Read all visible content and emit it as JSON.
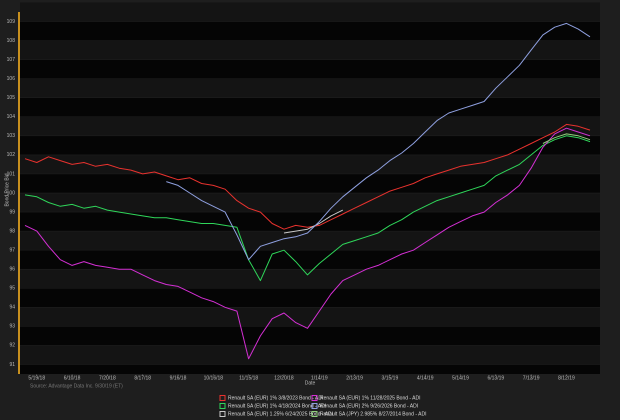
{
  "chart_data": {
    "type": "line",
    "y_label": "Bond Price Bid",
    "x_label": "Date",
    "source": "Source: Advantage Data Inc. 9/30/19 (ET)",
    "categories": [
      null,
      "5/19/18",
      null,
      null,
      "6/10/18",
      null,
      null,
      "7/20/18",
      null,
      null,
      "8/17/18",
      null,
      null,
      "9/16/18",
      null,
      null,
      "10/16/18",
      null,
      null,
      "11/15/18",
      null,
      null,
      "12/20/18",
      null,
      null,
      "1/14/19",
      null,
      null,
      "2/13/19",
      null,
      null,
      "3/15/19",
      null,
      null,
      "4/14/19",
      null,
      null,
      "5/14/19",
      null,
      null,
      "6/13/19",
      null,
      null,
      "7/13/19",
      null,
      null,
      "8/12/19",
      null,
      null
    ],
    "ylim": [
      90.5,
      109.5
    ],
    "yticks": [
      91,
      92,
      93,
      94,
      95,
      96,
      97,
      98,
      99,
      100,
      101,
      102,
      103,
      104,
      105,
      106,
      107,
      108,
      109
    ],
    "series": [
      {
        "name": "Renault SA (EUR) 1% 3/8/2023 Bond - ADI",
        "color": "#e8322e",
        "values": [
          101.8,
          101.6,
          101.9,
          101.7,
          101.5,
          101.6,
          101.4,
          101.5,
          101.3,
          101.2,
          101.0,
          101.1,
          100.9,
          100.7,
          100.8,
          100.5,
          100.4,
          100.2,
          99.6,
          99.2,
          99.0,
          98.4,
          98.1,
          98.3,
          98.2,
          98.3,
          98.6,
          98.9,
          99.2,
          99.5,
          99.8,
          100.1,
          100.3,
          100.5,
          100.8,
          101.0,
          101.2,
          101.4,
          101.5,
          101.6,
          101.8,
          102.0,
          102.3,
          102.6,
          102.9,
          103.2,
          103.6,
          103.5,
          103.3
        ]
      },
      {
        "name": "Renault SA (EUR) 1% 4/18/2024 Bond - ADI",
        "color": "#2fd65a",
        "values": [
          99.9,
          99.8,
          99.5,
          99.3,
          99.4,
          99.2,
          99.3,
          99.1,
          99.0,
          98.9,
          98.8,
          98.7,
          98.7,
          98.6,
          98.5,
          98.4,
          98.4,
          98.3,
          98.2,
          96.5,
          95.4,
          96.8,
          97.0,
          96.4,
          95.7,
          96.3,
          96.8,
          97.3,
          97.5,
          97.7,
          97.9,
          98.3,
          98.6,
          99.0,
          99.3,
          99.6,
          99.8,
          100.0,
          100.2,
          100.4,
          100.9,
          101.2,
          101.5,
          102.0,
          102.5,
          102.8,
          103.0,
          102.9,
          102.7
        ]
      },
      {
        "name": "Renault SA (EUR) 1.25% 6/24/2025 Bond - ADI",
        "color": "#c8c8c8",
        "values": [
          null,
          null,
          null,
          null,
          null,
          null,
          null,
          null,
          null,
          null,
          null,
          null,
          null,
          null,
          null,
          null,
          null,
          null,
          null,
          null,
          null,
          null,
          97.9,
          98.0,
          98.1,
          98.4,
          98.8,
          99.1,
          null,
          null,
          null,
          null,
          null,
          null,
          null,
          null,
          null,
          null,
          null,
          null,
          null,
          null,
          null,
          null,
          null,
          null,
          null,
          null,
          null
        ]
      },
      {
        "name": "Renault SA (EUR) 1% 11/28/2025 Bond - ADI",
        "color": "#d42fd4",
        "values": [
          98.3,
          98.0,
          97.2,
          96.5,
          96.2,
          96.4,
          96.2,
          96.1,
          96.0,
          96.0,
          95.7,
          95.4,
          95.2,
          95.1,
          94.8,
          94.5,
          94.3,
          94.0,
          93.8,
          91.3,
          92.5,
          93.4,
          93.7,
          93.2,
          92.9,
          93.8,
          94.7,
          95.4,
          95.7,
          96.0,
          96.2,
          96.5,
          96.8,
          97.0,
          97.4,
          97.8,
          98.2,
          98.5,
          98.8,
          99.0,
          99.5,
          99.9,
          100.4,
          101.3,
          102.4,
          103.1,
          103.4,
          103.2,
          103.0
        ]
      },
      {
        "name": "Renault SA (EUR) 2% 9/26/2026 Bond - ADI",
        "color": "#8fa0e0",
        "values": [
          null,
          null,
          null,
          null,
          null,
          null,
          null,
          null,
          null,
          null,
          null,
          null,
          100.6,
          100.4,
          100.0,
          99.6,
          99.3,
          99.0,
          97.8,
          96.5,
          97.2,
          97.4,
          97.6,
          97.7,
          97.9,
          98.5,
          99.2,
          99.8,
          100.3,
          100.8,
          101.2,
          101.7,
          102.1,
          102.6,
          103.2,
          103.8,
          104.2,
          104.4,
          104.6,
          104.8,
          105.5,
          106.1,
          106.7,
          107.5,
          108.3,
          108.7,
          108.9,
          108.6,
          108.2
        ]
      },
      {
        "name": "Renault SA (JPY) 2.985% 8/27/2014 Bond - ADI",
        "color": "#8fd07a",
        "values": [
          null,
          null,
          null,
          null,
          null,
          null,
          null,
          null,
          null,
          null,
          null,
          null,
          null,
          null,
          null,
          null,
          null,
          null,
          null,
          null,
          null,
          null,
          null,
          null,
          null,
          null,
          null,
          null,
          null,
          null,
          null,
          null,
          null,
          null,
          null,
          null,
          null,
          null,
          null,
          null,
          null,
          null,
          null,
          null,
          102.6,
          102.9,
          103.1,
          103.0,
          102.8
        ]
      }
    ]
  }
}
